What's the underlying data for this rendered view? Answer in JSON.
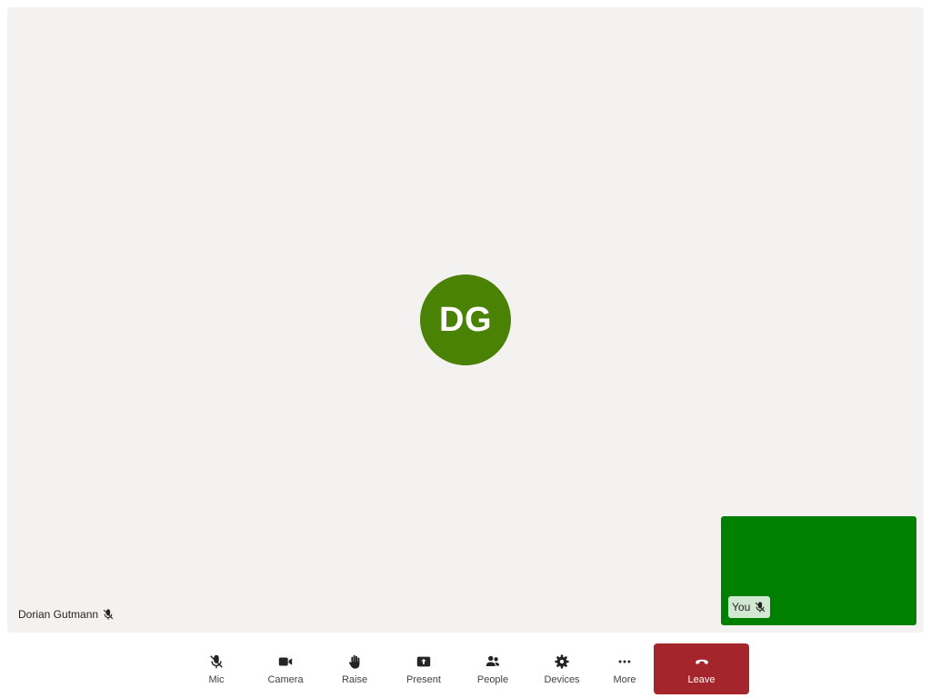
{
  "stage": {
    "participant": {
      "initials": "DG",
      "name": "Dorian Gutmann",
      "avatar_color": "#498205",
      "muted_icon": "mic-off-icon"
    },
    "self_view": {
      "label": "You",
      "background_color": "#008000",
      "muted_icon": "mic-off-icon"
    }
  },
  "toolbar": {
    "mic": {
      "label": "Mic",
      "icon": "mic-off-icon"
    },
    "camera": {
      "label": "Camera",
      "icon": "video-camera-icon"
    },
    "raise": {
      "label": "Raise",
      "icon": "hand-icon"
    },
    "present": {
      "label": "Present",
      "icon": "share-screen-icon"
    },
    "people": {
      "label": "People",
      "icon": "people-icon"
    },
    "devices": {
      "label": "Devices",
      "icon": "gear-icon"
    },
    "more": {
      "label": "More",
      "icon": "more-dots-icon"
    },
    "leave": {
      "label": "Leave",
      "icon": "hang-up-icon",
      "color": "#a4262c"
    }
  }
}
